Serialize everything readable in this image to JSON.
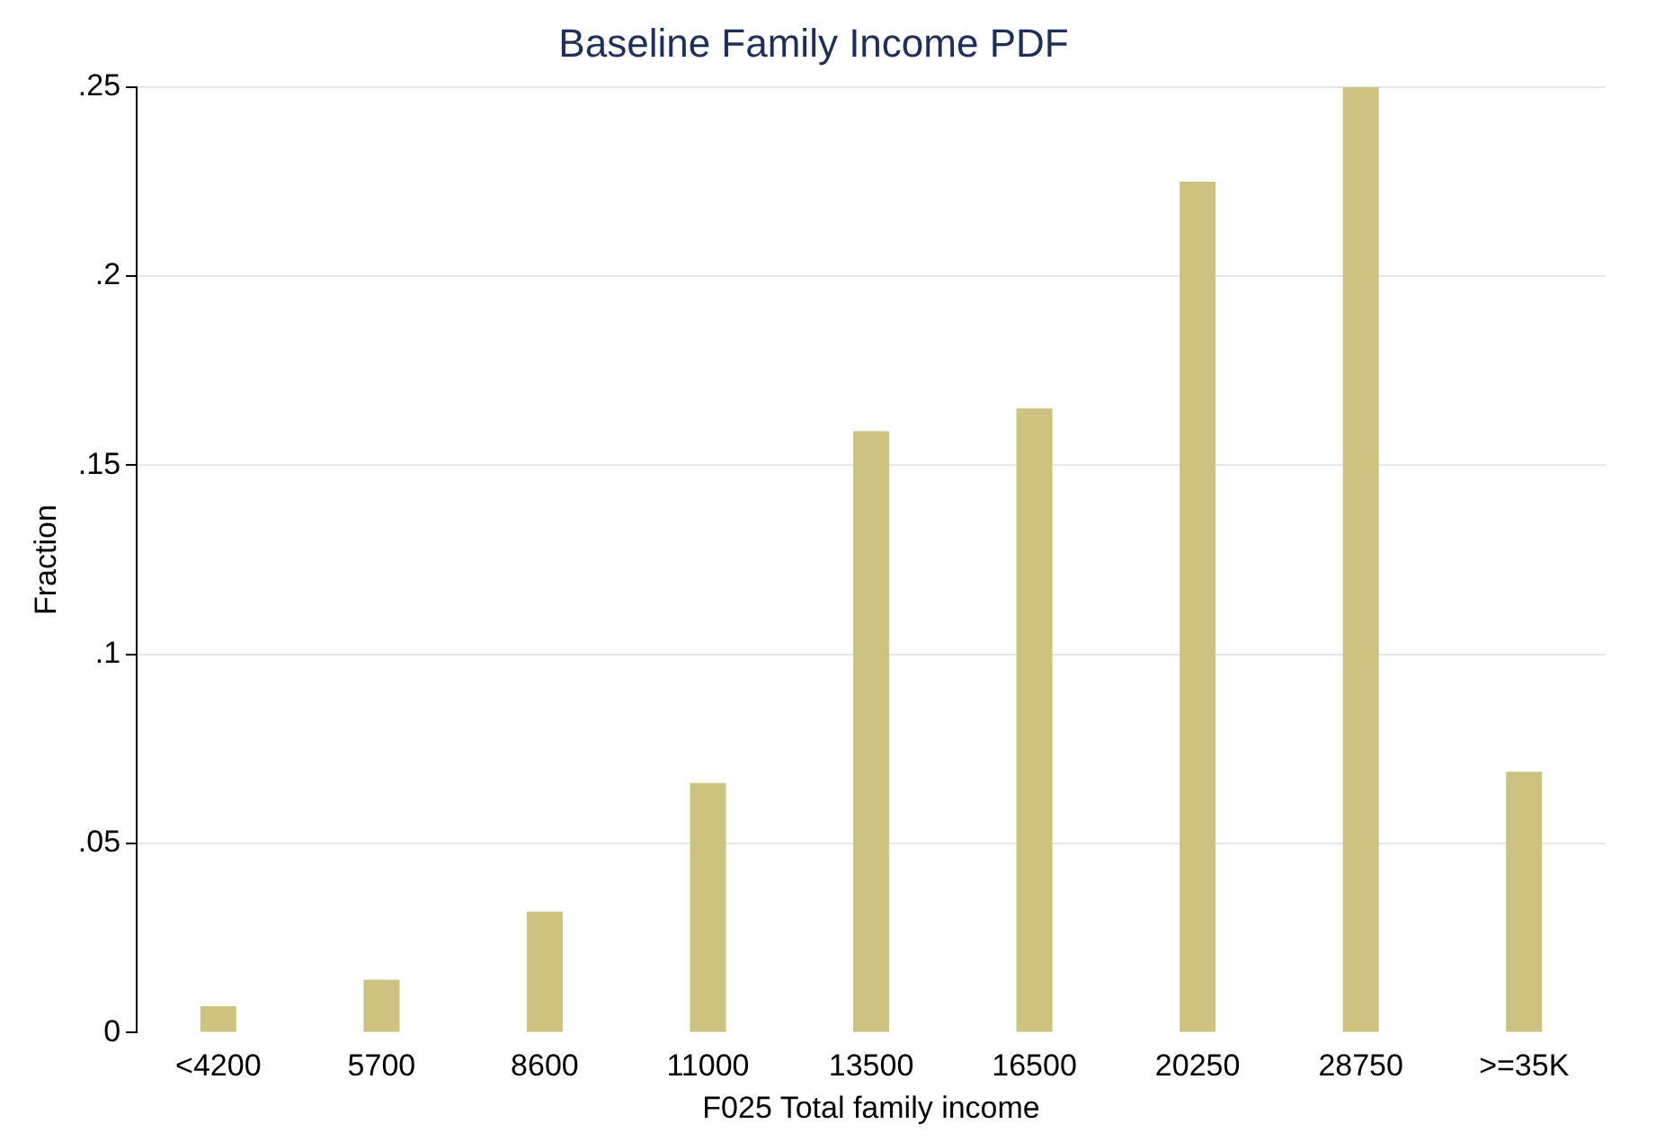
{
  "chart_data": {
    "type": "bar",
    "title": "Baseline Family Income PDF",
    "xlabel": "F025 Total family income",
    "ylabel": "Fraction",
    "categories": [
      "<4200",
      "5700",
      "8600",
      "11000",
      "13500",
      "16500",
      "20250",
      "28750",
      ">=35K"
    ],
    "values": [
      0.007,
      0.014,
      0.032,
      0.066,
      0.159,
      0.165,
      0.225,
      0.25,
      0.069
    ],
    "color": "#cdc27f",
    "ylim": [
      0,
      0.25
    ],
    "yticks": [
      0,
      {
        "value": 0.05,
        "label": ".05"
      },
      {
        "value": 0.1,
        "label": ".1"
      },
      {
        "value": 0.15,
        "label": ".15"
      },
      {
        "value": 0.2,
        "label": ".2"
      },
      {
        "value": 0.25,
        "label": ".25"
      }
    ],
    "grid": "y",
    "legend": false
  }
}
